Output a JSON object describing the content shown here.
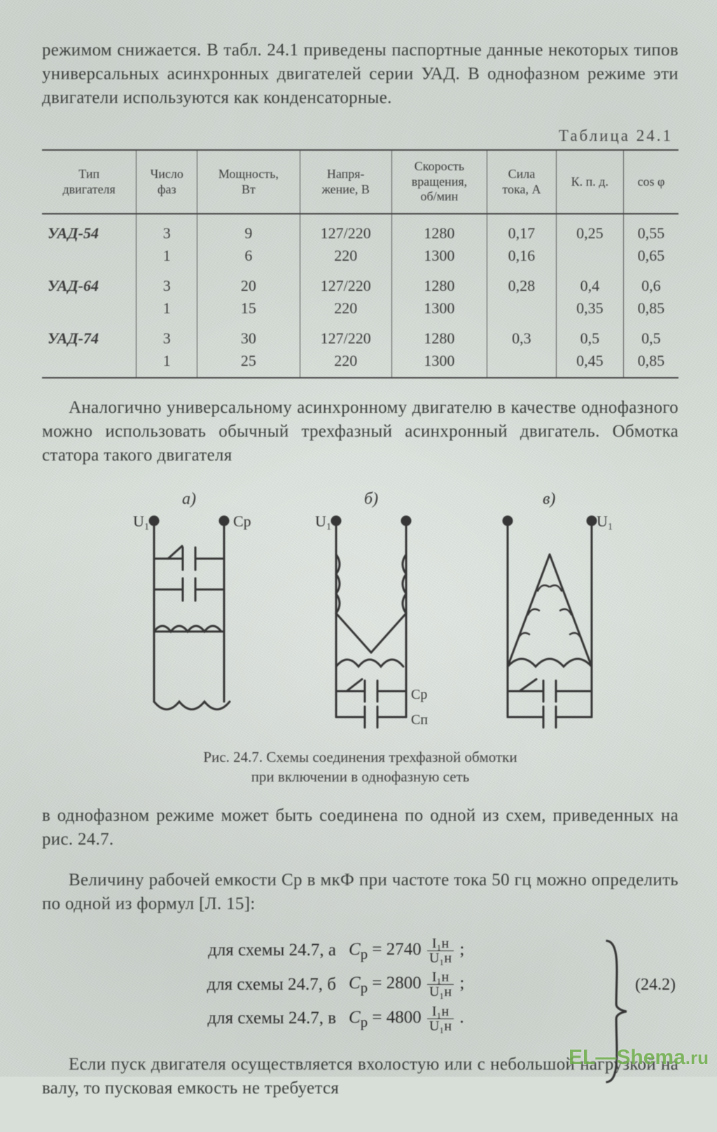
{
  "intro_para": "режимом снижается. В табл. 24.1 приведены паспортные данные некоторых типов универсальных асинхронных двигателей серии УАД. В однофазном режиме эти двигатели используются как конденсаторные.",
  "table_caption": "Таблица 24.1",
  "table": {
    "columns": [
      "Тип\nдвигателя",
      "Число\nфаз",
      "Мощность,\nВт",
      "Напря-\nжение, В",
      "Скорость\nвращения,\nоб/мин",
      "Сила\nтока, А",
      "К. п. д.",
      "cos φ"
    ],
    "rows": [
      {
        "type": "УАД-54",
        "ph": "3",
        "p": "9",
        "v": "127/220",
        "n": "1280",
        "i": "0,17",
        "kpd": "0,25",
        "cos": "0,55"
      },
      {
        "type": "",
        "ph": "1",
        "p": "6",
        "v": "220",
        "n": "1300",
        "i": "0,16",
        "kpd": "",
        "cos": "0,65"
      },
      {
        "type": "УАД-64",
        "ph": "3",
        "p": "20",
        "v": "127/220",
        "n": "1280",
        "i": "0,28",
        "kpd": "0,4",
        "cos": "0,6"
      },
      {
        "type": "",
        "ph": "1",
        "p": "15",
        "v": "220",
        "n": "1300",
        "i": "",
        "kpd": "0,35",
        "cos": "0,85"
      },
      {
        "type": "УАД-74",
        "ph": "3",
        "p": "30",
        "v": "127/220",
        "n": "1280",
        "i": "0,3",
        "kpd": "0,5",
        "cos": "0,5"
      },
      {
        "type": "",
        "ph": "1",
        "p": "25",
        "v": "220",
        "n": "1300",
        "i": "",
        "kpd": "0,45",
        "cos": "0,85"
      }
    ]
  },
  "mid_para": "Аналогично универсальному асинхронному двигателю в качестве однофазного можно использовать обычный трехфазный асинхронный двигатель. Обмотка статора такого двигателя",
  "fig_labels": {
    "a": "а)",
    "b": "б)",
    "v": "в)",
    "u1": "U₁",
    "cp": "Cр",
    "cn": "Cп"
  },
  "fig_caption_l1": "Рис. 24.7. Схемы соединения трехфазной обмотки",
  "fig_caption_l2": "при включении в однофазную сеть",
  "after_fig_p1": "в однофазном режиме может быть соединена по одной из схем, приведенных на рис. 24.7.",
  "after_fig_p2": "Величину рабочей емкости Cр в мкФ при частоте тока 50 гц можно определить по одной из формул [Л. 15]:",
  "formulas": {
    "a": {
      "label": "для схемы 24.7, а",
      "lhs": "Cр = 2740",
      "num": "I₁н",
      "den": "U₁н"
    },
    "b": {
      "label": "для схемы 24.7, б",
      "lhs": "Cр = 2800",
      "num": "I₁н",
      "den": "U₁н"
    },
    "c": {
      "label": "для схемы 24.7, в",
      "lhs": "Cр = 4800",
      "num": "I₁н",
      "den": "U₁н"
    },
    "eqno": "(24.2)"
  },
  "tail_para": "Если пуск двигателя осуществляется вхолостую или с небольшой нагрузкой на валу, то пусковая емкость не требуется",
  "watermark": "EL—Shema",
  "watermark_tail": ".ru",
  "colors": {
    "ink": "#2a2a2a",
    "paper": "#d8dfd9",
    "rule": "#444",
    "wm": "#6fae4b"
  }
}
